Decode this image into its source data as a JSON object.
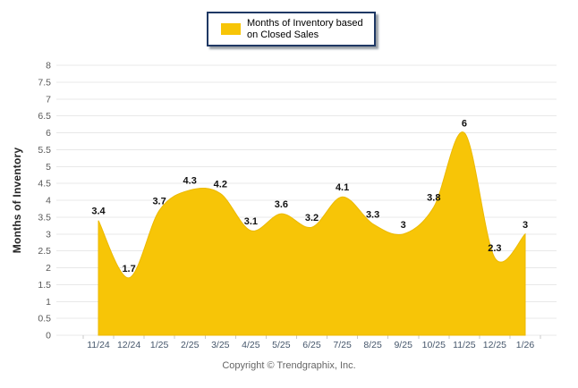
{
  "legend": {
    "line1": "Months of Inventory based",
    "line2": "on Closed Sales"
  },
  "footer": {
    "copyright": "Copyright © Trendgraphix, Inc."
  },
  "colors": {
    "series_fill": "#F7C507",
    "series_stroke": "#ECB900",
    "legend_border": "#1F3864",
    "gridline": "#E8E8E8"
  },
  "chart_data": {
    "type": "area",
    "title": "",
    "xlabel": "",
    "ylabel": "Months of Inventory",
    "categories": [
      "11/24",
      "12/24",
      "1/25",
      "2/25",
      "3/25",
      "4/25",
      "5/25",
      "6/25",
      "7/25",
      "8/25",
      "9/25",
      "10/25",
      "11/25",
      "12/25",
      "1/26"
    ],
    "series": [
      {
        "name": "Months of Inventory based on Closed Sales",
        "values": [
          3.4,
          1.7,
          3.7,
          4.3,
          4.2,
          3.1,
          3.6,
          3.2,
          4.1,
          3.3,
          3,
          3.8,
          6,
          2.3,
          3
        ]
      }
    ],
    "values": [
      3.4,
      1.7,
      3.7,
      4.3,
      4.2,
      3.1,
      3.6,
      3.2,
      4.1,
      3.3,
      3,
      3.8,
      6,
      2.3,
      3
    ],
    "data_labels": [
      "3.4",
      "1.7",
      "3.7",
      "4.3",
      "4.2",
      "3.1",
      "3.6",
      "3.2",
      "4.1",
      "3.3",
      "3",
      "3.8",
      "6",
      "2.3",
      "3"
    ],
    "ylim": [
      0,
      8
    ],
    "ytick_step": 0.5,
    "grid": true,
    "legend": [
      "Months of Inventory based on Closed Sales"
    ],
    "legend_position": "top-center"
  }
}
